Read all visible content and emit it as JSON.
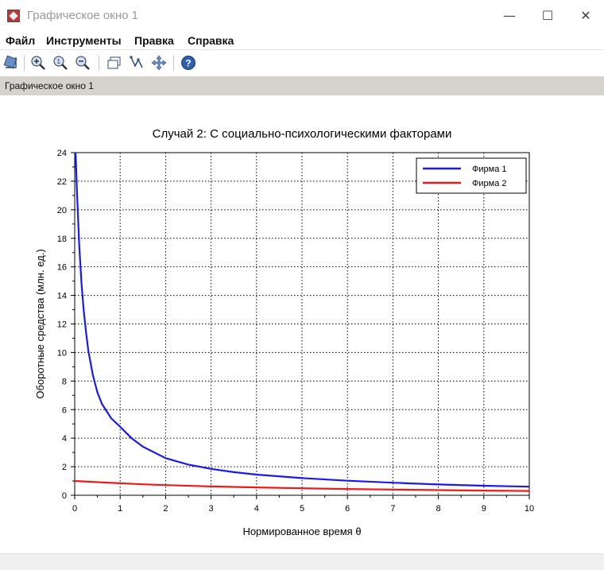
{
  "window": {
    "title": "Графическое окно 1",
    "minimize_glyph": "—",
    "maximize_glyph": "☐",
    "close_glyph": "✕"
  },
  "menu": {
    "items": [
      "Файл",
      "Инструменты",
      "Правка",
      "Справка"
    ]
  },
  "toolbar": {
    "icons": [
      "rotate-icon",
      "zoom-in-icon",
      "zoom-reset-icon",
      "zoom-out-icon",
      "datatip-icon",
      "edit-curve-icon",
      "pan-icon",
      "help-icon"
    ]
  },
  "tab": {
    "label": "Графическое окно 1"
  },
  "colors": {
    "series1": "#1a1aee",
    "series2": "#ee1a1a",
    "tabbar": "#d6d3ce"
  },
  "chart_data": {
    "type": "line",
    "title": "Случай 2: С социально-психологическими факторами",
    "xlabel": "Нормированное время θ",
    "ylabel": "Оборотные средства (млн. ед.)",
    "xlim": [
      0,
      10
    ],
    "ylim": [
      0,
      24
    ],
    "xticks": [
      0,
      1,
      2,
      3,
      4,
      5,
      6,
      7,
      8,
      9,
      10
    ],
    "yticks": [
      0,
      2,
      4,
      6,
      8,
      10,
      12,
      14,
      16,
      18,
      20,
      22,
      24
    ],
    "grid": true,
    "legend_position": "top-right",
    "series": [
      {
        "name": "Фирма 1",
        "color": "#1a1aee",
        "x": [
          0.02,
          0.05,
          0.1,
          0.15,
          0.2,
          0.25,
          0.3,
          0.4,
          0.5,
          0.6,
          0.8,
          1,
          1.25,
          1.5,
          2,
          2.5,
          3,
          3.5,
          4,
          5,
          6,
          7,
          8,
          9,
          10
        ],
        "y": [
          24,
          21.2,
          17.5,
          14.8,
          12.9,
          11.4,
          10.1,
          8.4,
          7.2,
          6.4,
          5.4,
          4.8,
          4.0,
          3.4,
          2.6,
          2.15,
          1.85,
          1.62,
          1.45,
          1.2,
          1.02,
          0.88,
          0.76,
          0.67,
          0.6
        ]
      },
      {
        "name": "Фирма 2",
        "color": "#ee1a1a",
        "x": [
          0,
          0.5,
          1,
          1.5,
          2,
          3,
          4,
          5,
          6,
          7,
          8,
          9,
          10
        ],
        "y": [
          1.0,
          0.92,
          0.84,
          0.77,
          0.71,
          0.62,
          0.55,
          0.49,
          0.44,
          0.4,
          0.36,
          0.33,
          0.3
        ]
      }
    ]
  }
}
